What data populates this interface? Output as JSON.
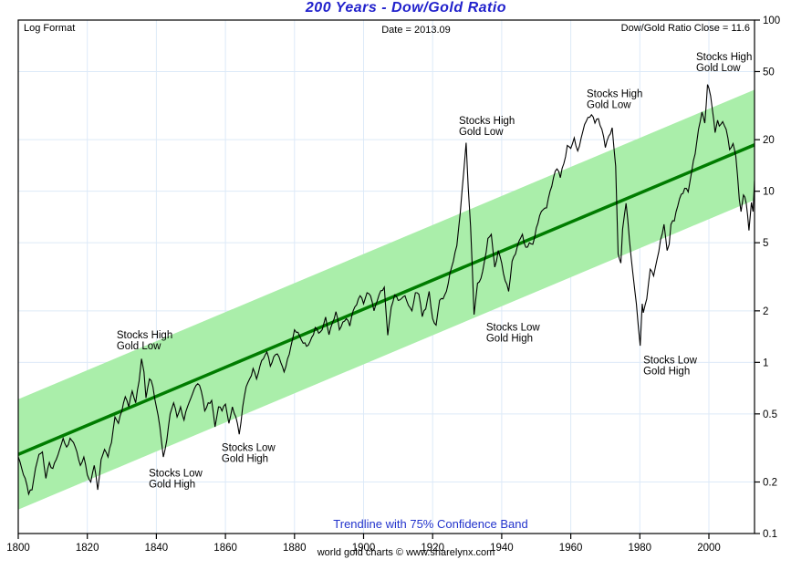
{
  "header": {
    "title": "200 Years - Dow/Gold Ratio",
    "top_left": "Log Format",
    "top_center": "Date = 2013.09",
    "top_right": "Dow/Gold Ratio Close = 11.6"
  },
  "footer": {
    "band_caption": "Trendline with 75% Confidence Band",
    "credit": "world gold charts © www.sharelynx.com"
  },
  "colors": {
    "title_blue": "#2222cc",
    "caption_blue": "#2233cc",
    "band_green": "#aaeeaa",
    "trend_green": "#007c00",
    "series_black": "#000000",
    "grid_blue": "#ddeaf8",
    "frame_black": "#000000"
  },
  "chart_data": {
    "type": "line",
    "title": "200 Years - Dow/Gold Ratio",
    "xlabel": "",
    "ylabel": "",
    "y_scale": "log",
    "x_range": [
      1800,
      2013.3
    ],
    "y_range": [
      0.1,
      100
    ],
    "x_ticks": [
      1800,
      1820,
      1840,
      1860,
      1880,
      1900,
      1920,
      1940,
      1960,
      1980,
      2000
    ],
    "y_ticks": [
      100,
      50,
      20,
      10,
      5,
      2,
      1,
      0.5,
      0.2,
      0.1
    ],
    "grid": true,
    "legend_position": "none",
    "trendline": {
      "year_start": 1800,
      "value_start": 0.29,
      "year_end": 2013.3,
      "value_end": 18.7
    },
    "confidence_band": {
      "label": "75% Confidence Band",
      "multiplier": 2.1
    },
    "annotations": [
      {
        "lines": [
          "Stocks High",
          "Gold Low"
        ],
        "year": 1828.5,
        "value": 1.54
      },
      {
        "lines": [
          "Stocks Low",
          "Gold High"
        ],
        "year": 1837.8,
        "value": 0.241
      },
      {
        "lines": [
          "Stocks Low",
          "Gold High"
        ],
        "year": 1858.9,
        "value": 0.34
      },
      {
        "lines": [
          "Stocks High",
          "Gold Low"
        ],
        "year": 1927.6,
        "value": 27.5
      },
      {
        "lines": [
          "Stocks Low",
          "Gold High"
        ],
        "year": 1935.5,
        "value": 1.71
      },
      {
        "lines": [
          "Stocks High",
          "Gold Low"
        ],
        "year": 1964.6,
        "value": 39.5
      },
      {
        "lines": [
          "Stocks Low",
          "Gold High"
        ],
        "year": 1981.0,
        "value": 1.1
      },
      {
        "lines": [
          "Stocks High",
          "Gold Low"
        ],
        "year": 1996.3,
        "value": 65
      }
    ],
    "series": [
      {
        "name": "Dow/Gold Ratio",
        "close": 11.6,
        "points": [
          [
            1800,
            0.28
          ],
          [
            1801,
            0.24
          ],
          [
            1802,
            0.21
          ],
          [
            1803,
            0.17
          ],
          [
            1804,
            0.18
          ],
          [
            1805,
            0.24
          ],
          [
            1806,
            0.29
          ],
          [
            1807,
            0.3
          ],
          [
            1808,
            0.21
          ],
          [
            1809,
            0.26
          ],
          [
            1810,
            0.24
          ],
          [
            1811,
            0.27
          ],
          [
            1812,
            0.31
          ],
          [
            1813,
            0.36
          ],
          [
            1814,
            0.32
          ],
          [
            1815,
            0.36
          ],
          [
            1816,
            0.34
          ],
          [
            1817,
            0.3
          ],
          [
            1818,
            0.25
          ],
          [
            1819,
            0.28
          ],
          [
            1820,
            0.22
          ],
          [
            1821,
            0.2
          ],
          [
            1822,
            0.25
          ],
          [
            1823,
            0.18
          ],
          [
            1824,
            0.27
          ],
          [
            1825,
            0.31
          ],
          [
            1826,
            0.28
          ],
          [
            1827,
            0.34
          ],
          [
            1828,
            0.48
          ],
          [
            1829,
            0.44
          ],
          [
            1830,
            0.52
          ],
          [
            1831,
            0.63
          ],
          [
            1832,
            0.55
          ],
          [
            1833,
            0.68
          ],
          [
            1834,
            0.58
          ],
          [
            1835,
            0.78
          ],
          [
            1835.7,
            1.05
          ],
          [
            1836.4,
            0.88
          ],
          [
            1837,
            0.62
          ],
          [
            1838,
            0.8
          ],
          [
            1839,
            0.72
          ],
          [
            1840,
            0.55
          ],
          [
            1841,
            0.42
          ],
          [
            1842,
            0.28
          ],
          [
            1843,
            0.35
          ],
          [
            1844,
            0.5
          ],
          [
            1845,
            0.58
          ],
          [
            1846,
            0.48
          ],
          [
            1847,
            0.55
          ],
          [
            1848,
            0.46
          ],
          [
            1849,
            0.55
          ],
          [
            1850,
            0.62
          ],
          [
            1851,
            0.7
          ],
          [
            1852,
            0.75
          ],
          [
            1853,
            0.68
          ],
          [
            1854,
            0.52
          ],
          [
            1855,
            0.58
          ],
          [
            1856,
            0.6
          ],
          [
            1857,
            0.42
          ],
          [
            1858,
            0.55
          ],
          [
            1859,
            0.52
          ],
          [
            1860,
            0.57
          ],
          [
            1861,
            0.44
          ],
          [
            1862,
            0.55
          ],
          [
            1863,
            0.48
          ],
          [
            1864,
            0.38
          ],
          [
            1865,
            0.55
          ],
          [
            1866,
            0.72
          ],
          [
            1867,
            0.8
          ],
          [
            1868,
            0.92
          ],
          [
            1869,
            0.8
          ],
          [
            1870,
            0.95
          ],
          [
            1871,
            1.05
          ],
          [
            1872,
            1.15
          ],
          [
            1873,
            0.95
          ],
          [
            1874,
            1.08
          ],
          [
            1875,
            1.12
          ],
          [
            1876,
            1.0
          ],
          [
            1877,
            0.88
          ],
          [
            1878,
            1.05
          ],
          [
            1879,
            1.25
          ],
          [
            1880,
            1.55
          ],
          [
            1881,
            1.5
          ],
          [
            1882,
            1.35
          ],
          [
            1883,
            1.3
          ],
          [
            1884,
            1.26
          ],
          [
            1885,
            1.4
          ],
          [
            1886,
            1.6
          ],
          [
            1887,
            1.48
          ],
          [
            1888,
            1.55
          ],
          [
            1889,
            1.84
          ],
          [
            1890,
            1.45
          ],
          [
            1891,
            1.7
          ],
          [
            1892,
            1.98
          ],
          [
            1893,
            1.55
          ],
          [
            1894,
            1.72
          ],
          [
            1895,
            1.8
          ],
          [
            1896,
            1.63
          ],
          [
            1897,
            2.0
          ],
          [
            1898,
            2.17
          ],
          [
            1899,
            2.45
          ],
          [
            1900,
            2.2
          ],
          [
            1901,
            2.55
          ],
          [
            1902,
            2.45
          ],
          [
            1903,
            2.0
          ],
          [
            1904,
            2.3
          ],
          [
            1905,
            2.62
          ],
          [
            1906,
            2.75
          ],
          [
            1907,
            1.44
          ],
          [
            1908,
            2.1
          ],
          [
            1909,
            2.48
          ],
          [
            1910,
            2.3
          ],
          [
            1911,
            2.36
          ],
          [
            1912,
            2.45
          ],
          [
            1913,
            2.15
          ],
          [
            1914,
            2.0
          ],
          [
            1915,
            2.55
          ],
          [
            1916,
            2.5
          ],
          [
            1917,
            1.85
          ],
          [
            1918,
            2.05
          ],
          [
            1919,
            2.6
          ],
          [
            1920,
            1.8
          ],
          [
            1921,
            1.65
          ],
          [
            1922,
            2.3
          ],
          [
            1923,
            2.35
          ],
          [
            1924,
            2.6
          ],
          [
            1925,
            3.3
          ],
          [
            1926,
            3.9
          ],
          [
            1927,
            4.8
          ],
          [
            1928,
            7.5
          ],
          [
            1929,
            13.0
          ],
          [
            1929.7,
            19.2
          ],
          [
            1930.3,
            10.5
          ],
          [
            1931,
            6.2
          ],
          [
            1932,
            1.9
          ],
          [
            1933,
            2.9
          ],
          [
            1934,
            3.1
          ],
          [
            1935,
            3.9
          ],
          [
            1936,
            5.3
          ],
          [
            1937,
            5.6
          ],
          [
            1938,
            3.6
          ],
          [
            1939,
            4.5
          ],
          [
            1940,
            3.8
          ],
          [
            1941,
            3.0
          ],
          [
            1942,
            2.6
          ],
          [
            1943,
            3.9
          ],
          [
            1944,
            4.3
          ],
          [
            1945,
            5.1
          ],
          [
            1946,
            5.6
          ],
          [
            1947,
            4.7
          ],
          [
            1948,
            5.0
          ],
          [
            1949,
            4.9
          ],
          [
            1950,
            6.1
          ],
          [
            1951,
            7.2
          ],
          [
            1952,
            7.8
          ],
          [
            1953,
            8.0
          ],
          [
            1954,
            10.0
          ],
          [
            1955,
            12.0
          ],
          [
            1956,
            13.5
          ],
          [
            1957,
            12.0
          ],
          [
            1958,
            14.5
          ],
          [
            1959,
            18.5
          ],
          [
            1960,
            17.8
          ],
          [
            1961,
            20.5
          ],
          [
            1962,
            17.2
          ],
          [
            1963,
            20.5
          ],
          [
            1964,
            24.5
          ],
          [
            1965,
            27.0
          ],
          [
            1966,
            28.0
          ],
          [
            1967,
            25.0
          ],
          [
            1968,
            26.5
          ],
          [
            1969,
            23.0
          ],
          [
            1970,
            18.0
          ],
          [
            1971,
            21.0
          ],
          [
            1972,
            23.5
          ],
          [
            1973,
            14.0
          ],
          [
            1973.7,
            4.3
          ],
          [
            1974.5,
            3.8
          ],
          [
            1975,
            6.0
          ],
          [
            1976,
            8.5
          ],
          [
            1977,
            5.2
          ],
          [
            1978,
            3.3
          ],
          [
            1979,
            2.2
          ],
          [
            1980.1,
            1.25
          ],
          [
            1980.7,
            2.2
          ],
          [
            1981,
            1.95
          ],
          [
            1982,
            2.35
          ],
          [
            1983,
            3.5
          ],
          [
            1984,
            3.2
          ],
          [
            1985,
            4.0
          ],
          [
            1986,
            5.2
          ],
          [
            1987,
            6.4
          ],
          [
            1987.9,
            4.5
          ],
          [
            1988.5,
            4.9
          ],
          [
            1989,
            6.4
          ],
          [
            1990,
            6.7
          ],
          [
            1991,
            8.2
          ],
          [
            1992,
            9.6
          ],
          [
            1993,
            10.4
          ],
          [
            1994,
            9.9
          ],
          [
            1995,
            13.0
          ],
          [
            1996,
            16.5
          ],
          [
            1997,
            23.0
          ],
          [
            1998,
            29.0
          ],
          [
            1998.8,
            25.0
          ],
          [
            1999.6,
            42.0
          ],
          [
            2000,
            40.0
          ],
          [
            2000.5,
            36.0
          ],
          [
            2001,
            30.0
          ],
          [
            2001.8,
            22.0
          ],
          [
            2002.5,
            26.0
          ],
          [
            2003,
            24.0
          ],
          [
            2004,
            25.5
          ],
          [
            2005,
            23.0
          ],
          [
            2006,
            17.5
          ],
          [
            2007,
            19.0
          ],
          [
            2007.8,
            16.0
          ],
          [
            2008.8,
            9.0
          ],
          [
            2009.3,
            7.6
          ],
          [
            2010,
            9.5
          ],
          [
            2010.8,
            8.5
          ],
          [
            2011.6,
            5.9
          ],
          [
            2012.3,
            8.6
          ],
          [
            2012.8,
            7.6
          ],
          [
            2013.2,
            11.6
          ]
        ]
      }
    ]
  }
}
